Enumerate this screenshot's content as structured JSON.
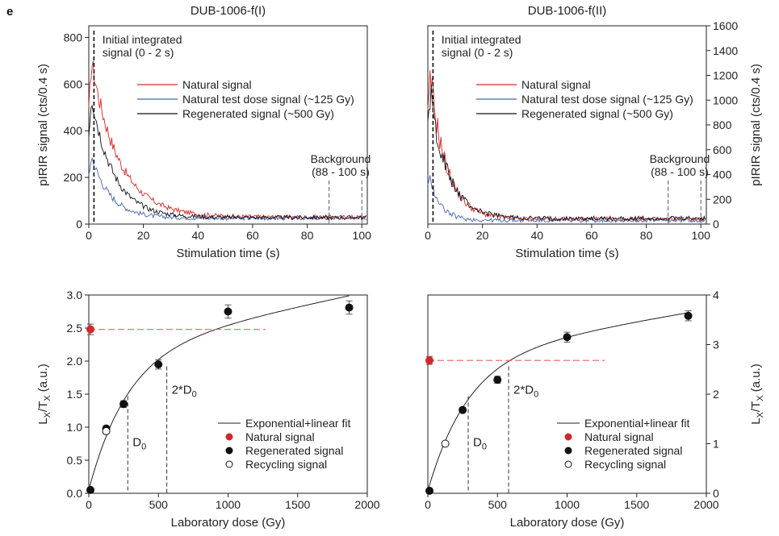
{
  "panel_label": "e",
  "colors": {
    "natural": "#d62728",
    "test_dose": "#4466b0",
    "regenerated": "#111111",
    "guide": "#555555",
    "natural_dash": "#e06666"
  },
  "chart_data": [
    {
      "id": "top-left",
      "type": "line",
      "title": "DUB-1006-f(I)",
      "xlabel": "Stimulation time (s)",
      "ylabel": "pIRIR signal (cts/0.4 s)",
      "xlim": [
        0,
        102
      ],
      "ylim": [
        0,
        850
      ],
      "xticks": [
        0,
        20,
        40,
        60,
        80,
        100
      ],
      "yticks": [
        0,
        200,
        400,
        600,
        800
      ],
      "legend": {
        "position": "center-right",
        "entries": [
          "Natural signal",
          "Natural test dose signal (~125 Gy)",
          "Regenerated signal (~500 Gy)"
        ]
      },
      "series": [
        {
          "name": "Natural signal",
          "color_key": "natural",
          "peak": 770,
          "tau": 10,
          "base": 30
        },
        {
          "name": "Natural test dose signal (~125 Gy)",
          "color_key": "test_dose",
          "peak": 330,
          "tau": 7,
          "base": 25
        },
        {
          "name": "Regenerated signal (~500 Gy)",
          "color_key": "regenerated",
          "peak": 620,
          "tau": 8,
          "base": 28
        }
      ],
      "annotations": [
        {
          "text": "Initial integrated signal (0 - 2 s)",
          "x_range": [
            0,
            2
          ]
        },
        {
          "text": "Background (88 - 100 s)",
          "x_range": [
            88,
            100
          ]
        }
      ]
    },
    {
      "id": "top-right",
      "type": "line",
      "title": "DUB-1006-f(II)",
      "xlabel": "Stimulation time (s)",
      "ylabel": "pIRIR signal (cts/0.4 s)",
      "xlim": [
        0,
        102
      ],
      "ylim": [
        0,
        1600
      ],
      "xticks": [
        0,
        20,
        40,
        60,
        80,
        100
      ],
      "yticks": [
        0,
        200,
        400,
        600,
        800,
        1000,
        1200,
        1400,
        1600
      ],
      "legend": {
        "position": "center-right",
        "entries": [
          "Natural signal",
          "Natural test dose signal (~125 Gy)",
          "Regenerated signal (~500 Gy)"
        ]
      },
      "series": [
        {
          "name": "Natural signal",
          "color_key": "natural",
          "peak": 1380,
          "tau": 6,
          "base": 40
        },
        {
          "name": "Natural test dose signal (~125 Gy)",
          "color_key": "test_dose",
          "peak": 450,
          "tau": 4,
          "base": 30
        },
        {
          "name": "Regenerated signal (~500 Gy)",
          "color_key": "regenerated",
          "peak": 1200,
          "tau": 6.5,
          "base": 45
        }
      ],
      "annotations": [
        {
          "text": "Initial integrated signal (0 - 2 s)",
          "x_range": [
            0,
            2
          ]
        },
        {
          "text": "Background (88 - 100 s)",
          "x_range": [
            88,
            100
          ]
        }
      ]
    },
    {
      "id": "bottom-left",
      "type": "scatter",
      "xlabel": "Laboratory dose (Gy)",
      "ylabel": "Lx/Tx (a.u.)",
      "xlim": [
        0,
        2000
      ],
      "ylim": [
        0,
        3.0
      ],
      "xticks": [
        0,
        500,
        1000,
        1500,
        2000
      ],
      "yticks": [
        0.0,
        0.5,
        1.0,
        1.5,
        2.0,
        2.5,
        3.0
      ],
      "legend": {
        "position": "bottom-right",
        "entries": [
          "Exponential+linear fit",
          "Natural signal",
          "Regenerated signal",
          "Recycling signal"
        ]
      },
      "natural": {
        "x": 0,
        "y": 2.48,
        "err": 0.08
      },
      "regenerated": [
        {
          "x": 0,
          "y": 0.05,
          "err": 0.02
        },
        {
          "x": 125,
          "y": 0.98,
          "err": 0.04
        },
        {
          "x": 250,
          "y": 1.35,
          "err": 0.05
        },
        {
          "x": 500,
          "y": 1.95,
          "err": 0.07
        },
        {
          "x": 1000,
          "y": 2.75,
          "err": 0.1
        },
        {
          "x": 1870,
          "y": 2.81,
          "err": 0.1
        }
      ],
      "recycling": [
        {
          "x": 125,
          "y": 0.94,
          "err": 0.03
        }
      ],
      "natural_line_end_x": 1270,
      "markers": [
        {
          "label": "D0",
          "x": 280
        },
        {
          "label": "2*D0",
          "x": 560
        }
      ],
      "fit": {
        "a": 2.1,
        "d0": 280,
        "b": 0.00045
      }
    },
    {
      "id": "bottom-right",
      "type": "scatter",
      "xlabel": "Laboratory dose (Gy)",
      "ylabel": "Lx/Tx (a.u.)",
      "xlim": [
        0,
        2000
      ],
      "ylim": [
        0,
        4
      ],
      "xticks": [
        0,
        500,
        1000,
        1500,
        2000
      ],
      "yticks": [
        0,
        1,
        2,
        3,
        4
      ],
      "legend": {
        "position": "bottom-right",
        "entries": [
          "Exponential+linear fit",
          "Natural signal",
          "Regenerated signal",
          "Recycling signal"
        ]
      },
      "natural": {
        "x": 0,
        "y": 2.68,
        "err": 0.08
      },
      "regenerated": [
        {
          "x": 0,
          "y": 0.05,
          "err": 0.02
        },
        {
          "x": 250,
          "y": 1.68,
          "err": 0.05
        },
        {
          "x": 500,
          "y": 2.29,
          "err": 0.07
        },
        {
          "x": 1000,
          "y": 3.15,
          "err": 0.1
        },
        {
          "x": 1870,
          "y": 3.58,
          "err": 0.1
        }
      ],
      "recycling": [
        {
          "x": 125,
          "y": 1.0,
          "err": 0.03
        }
      ],
      "natural_line_end_x": 1270,
      "markers": [
        {
          "label": "D0",
          "x": 290
        },
        {
          "label": "2*D0",
          "x": 580
        }
      ],
      "fit": {
        "a": 2.7,
        "d0": 290,
        "b": 0.00048
      }
    }
  ]
}
